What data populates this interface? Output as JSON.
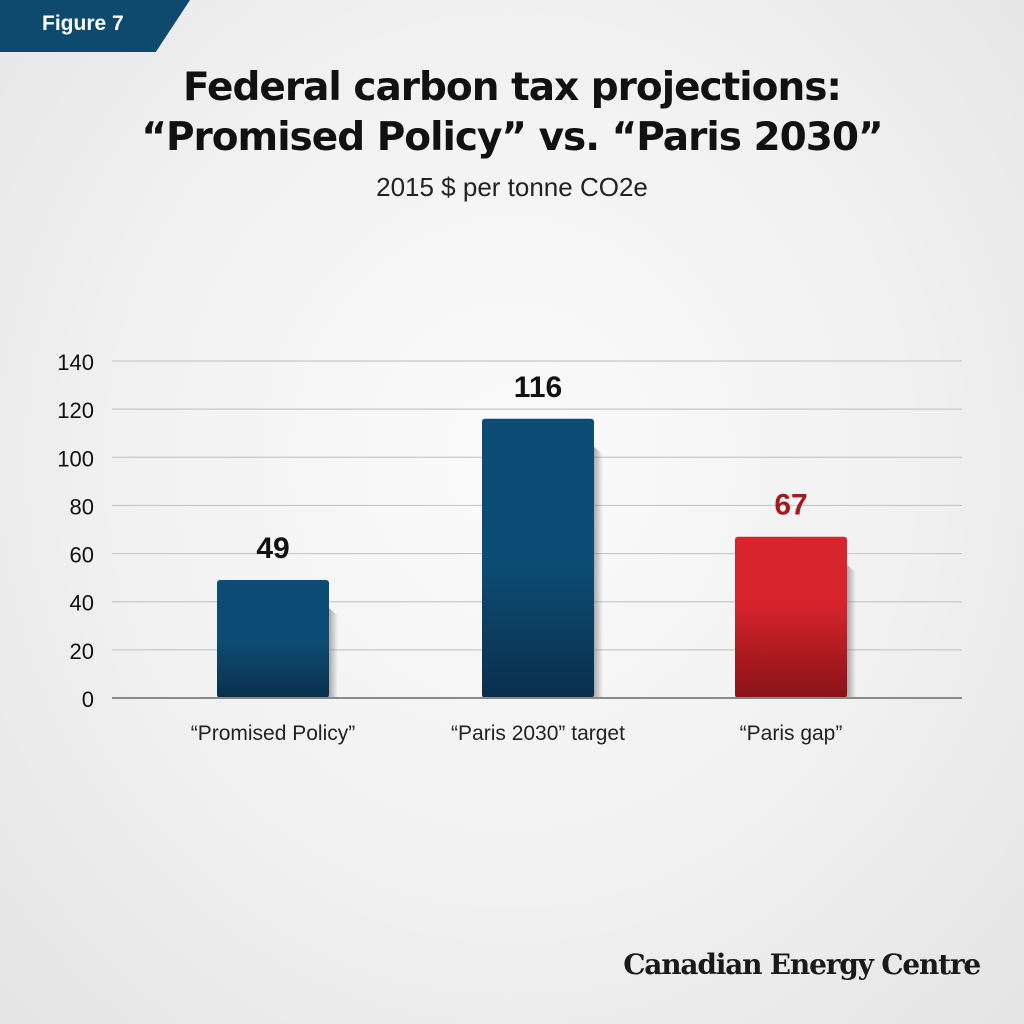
{
  "figure_label": "Figure 7",
  "credit": "Canadian Energy Centre",
  "colors": {
    "blue_top": "#0d4d75",
    "blue_bottom": "#0a2f4d",
    "red_top": "#d8242c",
    "red_bottom": "#8a1217",
    "red_label": "#a31b20",
    "label_dark": "#111111",
    "grid": "#c8c8c8",
    "axis": "#8a8a8a"
  },
  "chart_data": {
    "type": "bar",
    "title_line1": "Federal carbon tax projections:",
    "title_line2": "“Promised Policy” vs. “Paris 2030”",
    "subtitle": "2015 $ per tonne CO2e",
    "xlabel": "",
    "ylabel": "",
    "categories": [
      "“Promised Policy”",
      "“Paris 2030” target",
      "“Paris gap”"
    ],
    "values": [
      49,
      116,
      67
    ],
    "bar_colors": [
      "blue",
      "blue",
      "red"
    ],
    "ylim": [
      0,
      140
    ],
    "yticks": [
      0,
      20,
      40,
      60,
      80,
      100,
      120,
      140
    ],
    "grid": true,
    "legend": "none"
  }
}
